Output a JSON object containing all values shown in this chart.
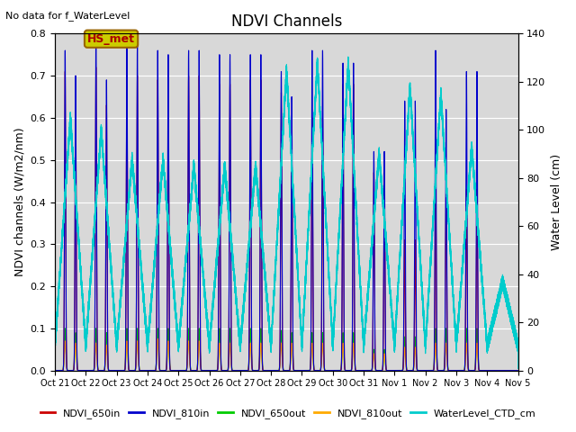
{
  "title": "NDVI Channels",
  "top_left_text": "No data for f_WaterLevel",
  "ylabel_left": "NDVI channels (W/m2/nm)",
  "ylabel_right": "Water Level (cm)",
  "ylim_left": [
    0.0,
    0.8
  ],
  "ylim_right": [
    0,
    140
  ],
  "yticks_left": [
    0.0,
    0.1,
    0.2,
    0.3,
    0.4,
    0.5,
    0.6,
    0.7,
    0.8
  ],
  "yticks_right": [
    0,
    20,
    40,
    60,
    80,
    100,
    120,
    140
  ],
  "xtick_labels": [
    "Oct 21",
    "Oct 22",
    "Oct 23",
    "Oct 24",
    "Oct 25",
    "Oct 26",
    "Oct 27",
    "Oct 28",
    "Oct 29",
    "Oct 30",
    "Oct 31",
    "Nov 1",
    "Nov 2",
    "Nov 3",
    "Nov 4",
    "Nov 5"
  ],
  "legend_colors": [
    "#cc0000",
    "#0000cc",
    "#00cc00",
    "#ffaa00",
    "#00cccc"
  ],
  "legend_labels": [
    "NDVI_650in",
    "NDVI_810in",
    "NDVI_650out",
    "NDVI_810out",
    "WaterLevel_CTD_cm"
  ],
  "box_label": "HS_met",
  "box_facecolor": "#cccc00",
  "box_edgecolor": "#996600",
  "box_text_color": "#aa0000",
  "plot_bg": "#d8d8d8",
  "fig_bg": "#ffffff",
  "n_days": 15
}
